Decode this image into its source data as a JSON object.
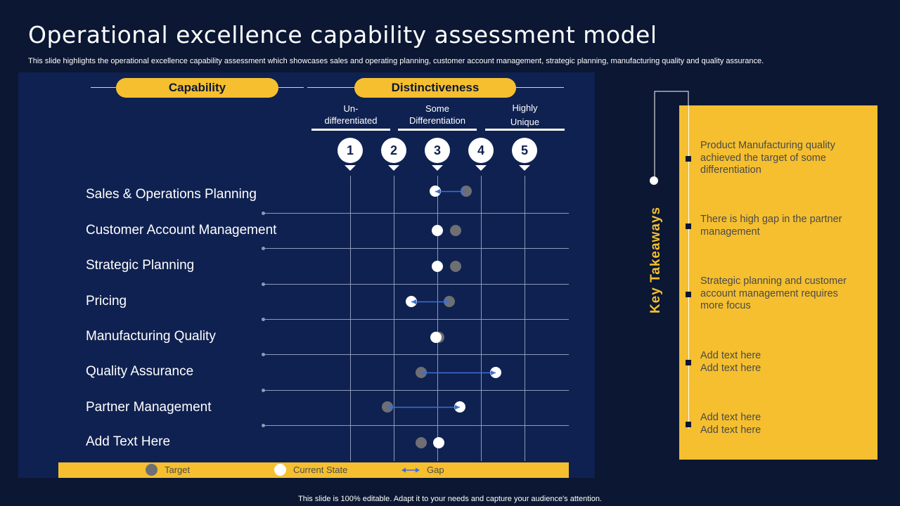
{
  "title": "Operational excellence capability assessment model",
  "subtitle": "This slide highlights the operational excellence capability assessment which showcases sales and operating planning, customer account management, strategic planning, manufacturing quality and quality assurance.",
  "headers": {
    "capability": "Capability",
    "distinctiveness": "Distinctiveness"
  },
  "categories": {
    "undiff": "Un-\ndifferentiated",
    "some": "Some\nDifferentiation",
    "high": "Highly\nUnique"
  },
  "scale_numbers": [
    "1",
    "2",
    "3",
    "4",
    "5"
  ],
  "rows": [
    {
      "label": "Sales & Operations Planning",
      "target": 3.66,
      "current": 2.95,
      "gap": true
    },
    {
      "label": "Customer Account Management",
      "target": 3.42,
      "current": 3.0,
      "gap": false
    },
    {
      "label": "Strategic Planning",
      "target": 3.42,
      "current": 3.0,
      "gap": false
    },
    {
      "label": "Pricing",
      "target": 3.28,
      "current": 2.4,
      "gap": true
    },
    {
      "label": "Manufacturing Quality",
      "target": 3.04,
      "current": 2.96,
      "gap": false
    },
    {
      "label": "Quality Assurance",
      "target": 2.63,
      "current": 4.34,
      "gap": true
    },
    {
      "label": "Partner Management",
      "target": 1.86,
      "current": 3.52,
      "gap": true
    },
    {
      "label": "Add Text Here",
      "target": 2.63,
      "current": 3.03,
      "gap": false
    }
  ],
  "legend": {
    "target": "Target",
    "current": "Current  State",
    "gap": "Gap"
  },
  "colors": {
    "accent": "#f5bf2f",
    "background": "#0b1733",
    "panel": "#0f2150",
    "gap_arrow": "#3d6fd8"
  },
  "key_takeaways": {
    "label": "Key Takeaways",
    "items": [
      "Product Manufacturing quality achieved the target of some differentiation",
      "There is high gap in the partner management",
      "Strategic planning and customer account management requires more focus",
      "Add text here\nAdd text here",
      "Add text here\nAdd text here"
    ]
  },
  "footer": "This slide is 100% editable.  Adapt it to your needs and capture your audience's attention."
}
